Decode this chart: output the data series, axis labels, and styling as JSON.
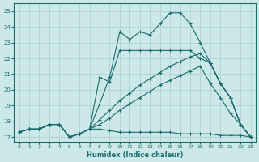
{
  "xlabel": "Humidex (Indice chaleur)",
  "bg_color": "#cce8e8",
  "line_color": "#1a6b6b",
  "grid_color": "#aacfcf",
  "xticks": [
    0,
    1,
    2,
    3,
    4,
    5,
    6,
    7,
    8,
    9,
    10,
    11,
    12,
    13,
    14,
    15,
    16,
    17,
    18,
    19,
    20,
    21,
    22,
    23
  ],
  "yticks": [
    17,
    18,
    19,
    20,
    21,
    22,
    23,
    24,
    25
  ],
  "xlim": [
    -0.5,
    23.5
  ],
  "ylim": [
    16.7,
    25.5
  ],
  "line_main": {
    "x": [
      0,
      1,
      2,
      3,
      4,
      5,
      6,
      7,
      8,
      9,
      10,
      11,
      12,
      13,
      14,
      15,
      16,
      17,
      18,
      19,
      20,
      21,
      22,
      23
    ],
    "y": [
      17.3,
      17.5,
      17.5,
      17.8,
      17.8,
      17.0,
      17.2,
      17.5,
      19.1,
      20.8,
      23.7,
      23.2,
      23.7,
      23.5,
      24.2,
      24.9,
      24.9,
      24.2,
      23.0,
      21.7,
      20.4,
      19.5,
      17.8,
      17.0
    ]
  },
  "line_flat": {
    "x": [
      0,
      1,
      2,
      3,
      4,
      5,
      6,
      7,
      8,
      9,
      10,
      11,
      12,
      13,
      14,
      15,
      16,
      17,
      18,
      19,
      20,
      21,
      22,
      23
    ],
    "y": [
      17.3,
      17.5,
      17.5,
      17.8,
      17.8,
      17.0,
      17.2,
      17.5,
      17.5,
      17.4,
      17.3,
      17.3,
      17.3,
      17.3,
      17.3,
      17.3,
      17.2,
      17.2,
      17.2,
      17.2,
      17.1,
      17.1,
      17.1,
      17.0
    ]
  },
  "line_spike": {
    "x": [
      0,
      1,
      2,
      3,
      4,
      5,
      6,
      7,
      8,
      9,
      10,
      11,
      12,
      13,
      14,
      15,
      16,
      17,
      18,
      19,
      20,
      21,
      22,
      23
    ],
    "y": [
      17.3,
      17.5,
      17.5,
      17.8,
      17.8,
      17.0,
      17.2,
      17.5,
      20.8,
      20.5,
      22.5,
      22.5,
      22.5,
      22.5,
      22.5,
      22.5,
      22.5,
      22.5,
      22.0,
      21.7,
      20.4,
      19.5,
      17.8,
      17.0
    ]
  },
  "line_diag1": {
    "x": [
      0,
      1,
      2,
      3,
      4,
      5,
      6,
      7,
      8,
      9,
      10,
      11,
      12,
      13,
      14,
      15,
      16,
      17,
      18,
      19,
      20,
      21,
      22,
      23
    ],
    "y": [
      17.3,
      17.5,
      17.5,
      17.8,
      17.8,
      17.0,
      17.2,
      17.5,
      18.1,
      18.7,
      19.3,
      19.8,
      20.3,
      20.7,
      21.1,
      21.5,
      21.8,
      22.1,
      22.3,
      21.7,
      20.4,
      19.5,
      17.8,
      17.0
    ]
  },
  "line_diag2": {
    "x": [
      0,
      1,
      2,
      3,
      4,
      5,
      6,
      7,
      8,
      9,
      10,
      11,
      12,
      13,
      14,
      15,
      16,
      17,
      18,
      19,
      20,
      21,
      22,
      23
    ],
    "y": [
      17.3,
      17.5,
      17.5,
      17.8,
      17.8,
      17.0,
      17.2,
      17.5,
      17.8,
      18.2,
      18.7,
      19.1,
      19.5,
      19.9,
      20.3,
      20.6,
      20.9,
      21.2,
      21.5,
      20.4,
      19.5,
      18.5,
      17.8,
      17.0
    ]
  }
}
